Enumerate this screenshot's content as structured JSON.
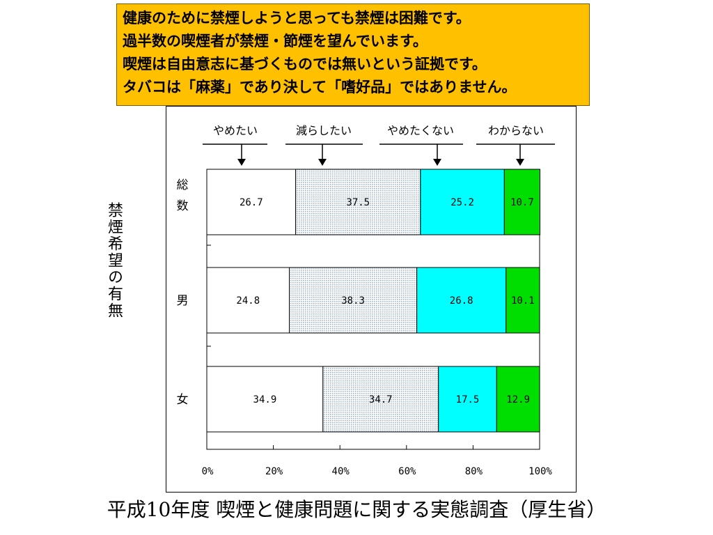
{
  "callout": {
    "lines": [
      "健康のために禁煙しようと思っても禁煙は困難です。",
      "過半数の喫煙者が禁煙・節煙を望んでいます。",
      "喫煙は自由意志に基づくものでは無いという証拠です。",
      "タバコは「麻薬」であり決して「嗜好品」ではありません。"
    ]
  },
  "vertical_label": "禁煙希望の有無",
  "source": "平成10年度 喫煙と健康問題に関する実態調査（厚生省）",
  "colors": {
    "yametai": "#ffffff",
    "herashitai": "#dde8f2",
    "yametakunai": "#00ffff",
    "wakaranai": "#00dd00",
    "callout_bg": "#ffc000"
  },
  "chart_data": {
    "type": "bar",
    "orientation": "horizontal",
    "stacked": true,
    "categories": [
      "総数",
      "男",
      "女"
    ],
    "series": [
      {
        "name": "やめたい",
        "values": [
          26.7,
          24.8,
          34.9
        ]
      },
      {
        "name": "減らしたい",
        "values": [
          37.5,
          38.3,
          34.7
        ]
      },
      {
        "name": "やめたくない",
        "values": [
          25.2,
          26.8,
          17.5
        ]
      },
      {
        "name": "わからない",
        "values": [
          10.7,
          10.1,
          12.9
        ]
      }
    ],
    "xlim": [
      0,
      100
    ],
    "xticks": [
      "0%",
      "20%",
      "40%",
      "60%",
      "80%",
      "100%"
    ],
    "legend_position": "top",
    "grid": false
  }
}
